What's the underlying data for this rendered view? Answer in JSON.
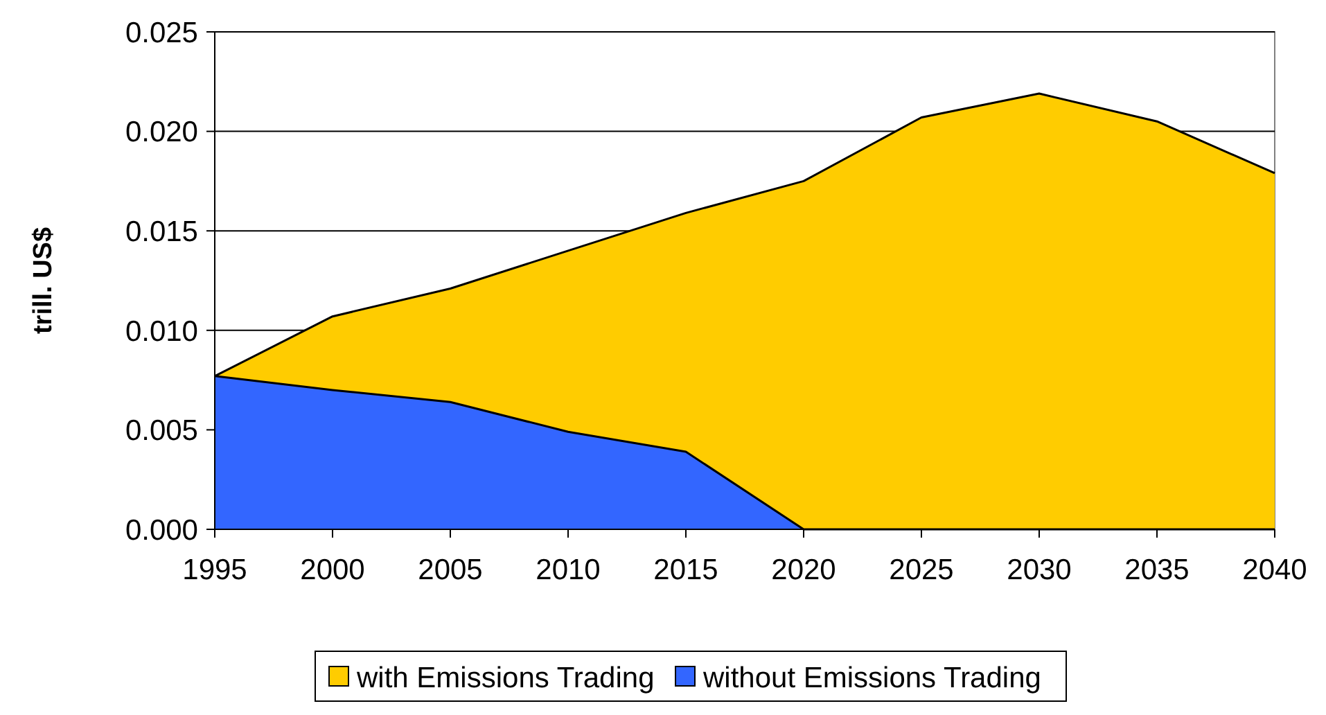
{
  "chart_data": {
    "type": "area",
    "ylabel": "trill. US$",
    "categories": [
      "1995",
      "2000",
      "2005",
      "2010",
      "2015",
      "2020",
      "2025",
      "2030",
      "2035",
      "2040"
    ],
    "series": [
      {
        "name": "with Emissions Trading",
        "color": "#ffcc00",
        "values": [
          0.0077,
          0.0107,
          0.0121,
          0.014,
          0.0159,
          0.0175,
          0.0207,
          0.0219,
          0.0205,
          0.0179
        ]
      },
      {
        "name": "without Emissions Trading",
        "color": "#3366ff",
        "values": [
          0.0077,
          0.007,
          0.0064,
          0.0049,
          0.0039,
          0,
          0,
          0,
          0,
          0
        ]
      }
    ],
    "ylim": [
      0,
      0.025
    ],
    "yticks": [
      {
        "value": 0,
        "label": "0.000"
      },
      {
        "value": 0.005,
        "label": "0.005"
      },
      {
        "value": 0.01,
        "label": "0.010"
      },
      {
        "value": 0.015,
        "label": "0.015"
      },
      {
        "value": 0.02,
        "label": "0.020"
      },
      {
        "value": 0.025,
        "label": "0.025"
      }
    ],
    "grid": "y",
    "legend": "bottom"
  }
}
